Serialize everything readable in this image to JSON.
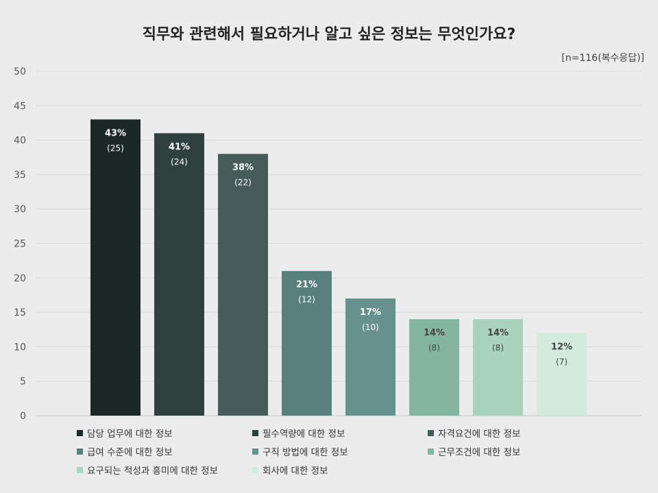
{
  "chart_data": {
    "type": "bar",
    "title": "직무와 관련해서 필요하거나 알고 싶은 정보는 무엇인가요?",
    "note": "[n=116(복수응답)]",
    "categories": [
      "담당 업무에 대한 정보",
      "필수역량에 대한 정보",
      "자격요건에 대한 정보",
      "급여 수준에 대한 정보",
      "구직 방법에 대한 정보",
      "근무조건에 대한 정보",
      "요구되는 적성과 흥미에 대한 정보",
      "회사에 대한 정보"
    ],
    "values": [
      43,
      41,
      38,
      21,
      17,
      14,
      14,
      12
    ],
    "percent_labels": [
      "43%",
      "41%",
      "38%",
      "21%",
      "17%",
      "14%",
      "14%",
      "12%"
    ],
    "count_labels": [
      "(25)",
      "(24)",
      "(22)",
      "(12)",
      "(10)",
      "(8)",
      "(8)",
      "(7)"
    ],
    "colors": [
      "#1c2826",
      "#2f413f",
      "#455c5a",
      "#58807d",
      "#66918d",
      "#84b59e",
      "#aad3bc",
      "#d3ebdc"
    ],
    "label_colors": [
      "#ffffff",
      "#ffffff",
      "#ffffff",
      "#ffffff",
      "#ffffff",
      "#444444",
      "#444444",
      "#444444"
    ],
    "ylim": [
      0,
      50
    ],
    "yticks": [
      0,
      5,
      10,
      15,
      20,
      25,
      30,
      35,
      40,
      45,
      50
    ],
    "grid": true,
    "legend_position": "bottom",
    "xlabel": "",
    "ylabel": ""
  }
}
